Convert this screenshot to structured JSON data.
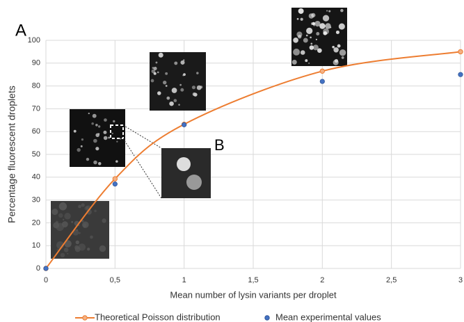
{
  "chart_data": {
    "type": "line",
    "x_label": "Mean number of lysin variants per droplet",
    "y_label": "Percentage fluorescent droplets",
    "annotations": [
      "A",
      "B"
    ],
    "xlim": [
      0,
      3
    ],
    "xticks": [
      0,
      {
        "value": 0.5,
        "label": "0,5"
      },
      1,
      {
        "value": 1.5,
        "label": "1,5"
      },
      2,
      {
        "value": 2.5,
        "label": "2,5"
      },
      3
    ],
    "ylim": [
      0,
      100
    ],
    "yticks": [
      0,
      10,
      20,
      30,
      40,
      50,
      60,
      70,
      80,
      90,
      100
    ],
    "grid": true,
    "legend": "bottom",
    "series": [
      {
        "name": "Theoretical Poisson distribution",
        "color": "#ED7D31",
        "style": "line",
        "x": [
          0,
          0.5,
          1,
          2,
          3
        ],
        "values": [
          0,
          39.3,
          63.2,
          86.5,
          95
        ]
      },
      {
        "name": "Mean experimental values",
        "color": "#4472C4",
        "style": "scatter",
        "x": [
          0,
          0.5,
          1,
          2,
          3
        ],
        "values": [
          0,
          37,
          63,
          82,
          85
        ]
      }
    ]
  }
}
